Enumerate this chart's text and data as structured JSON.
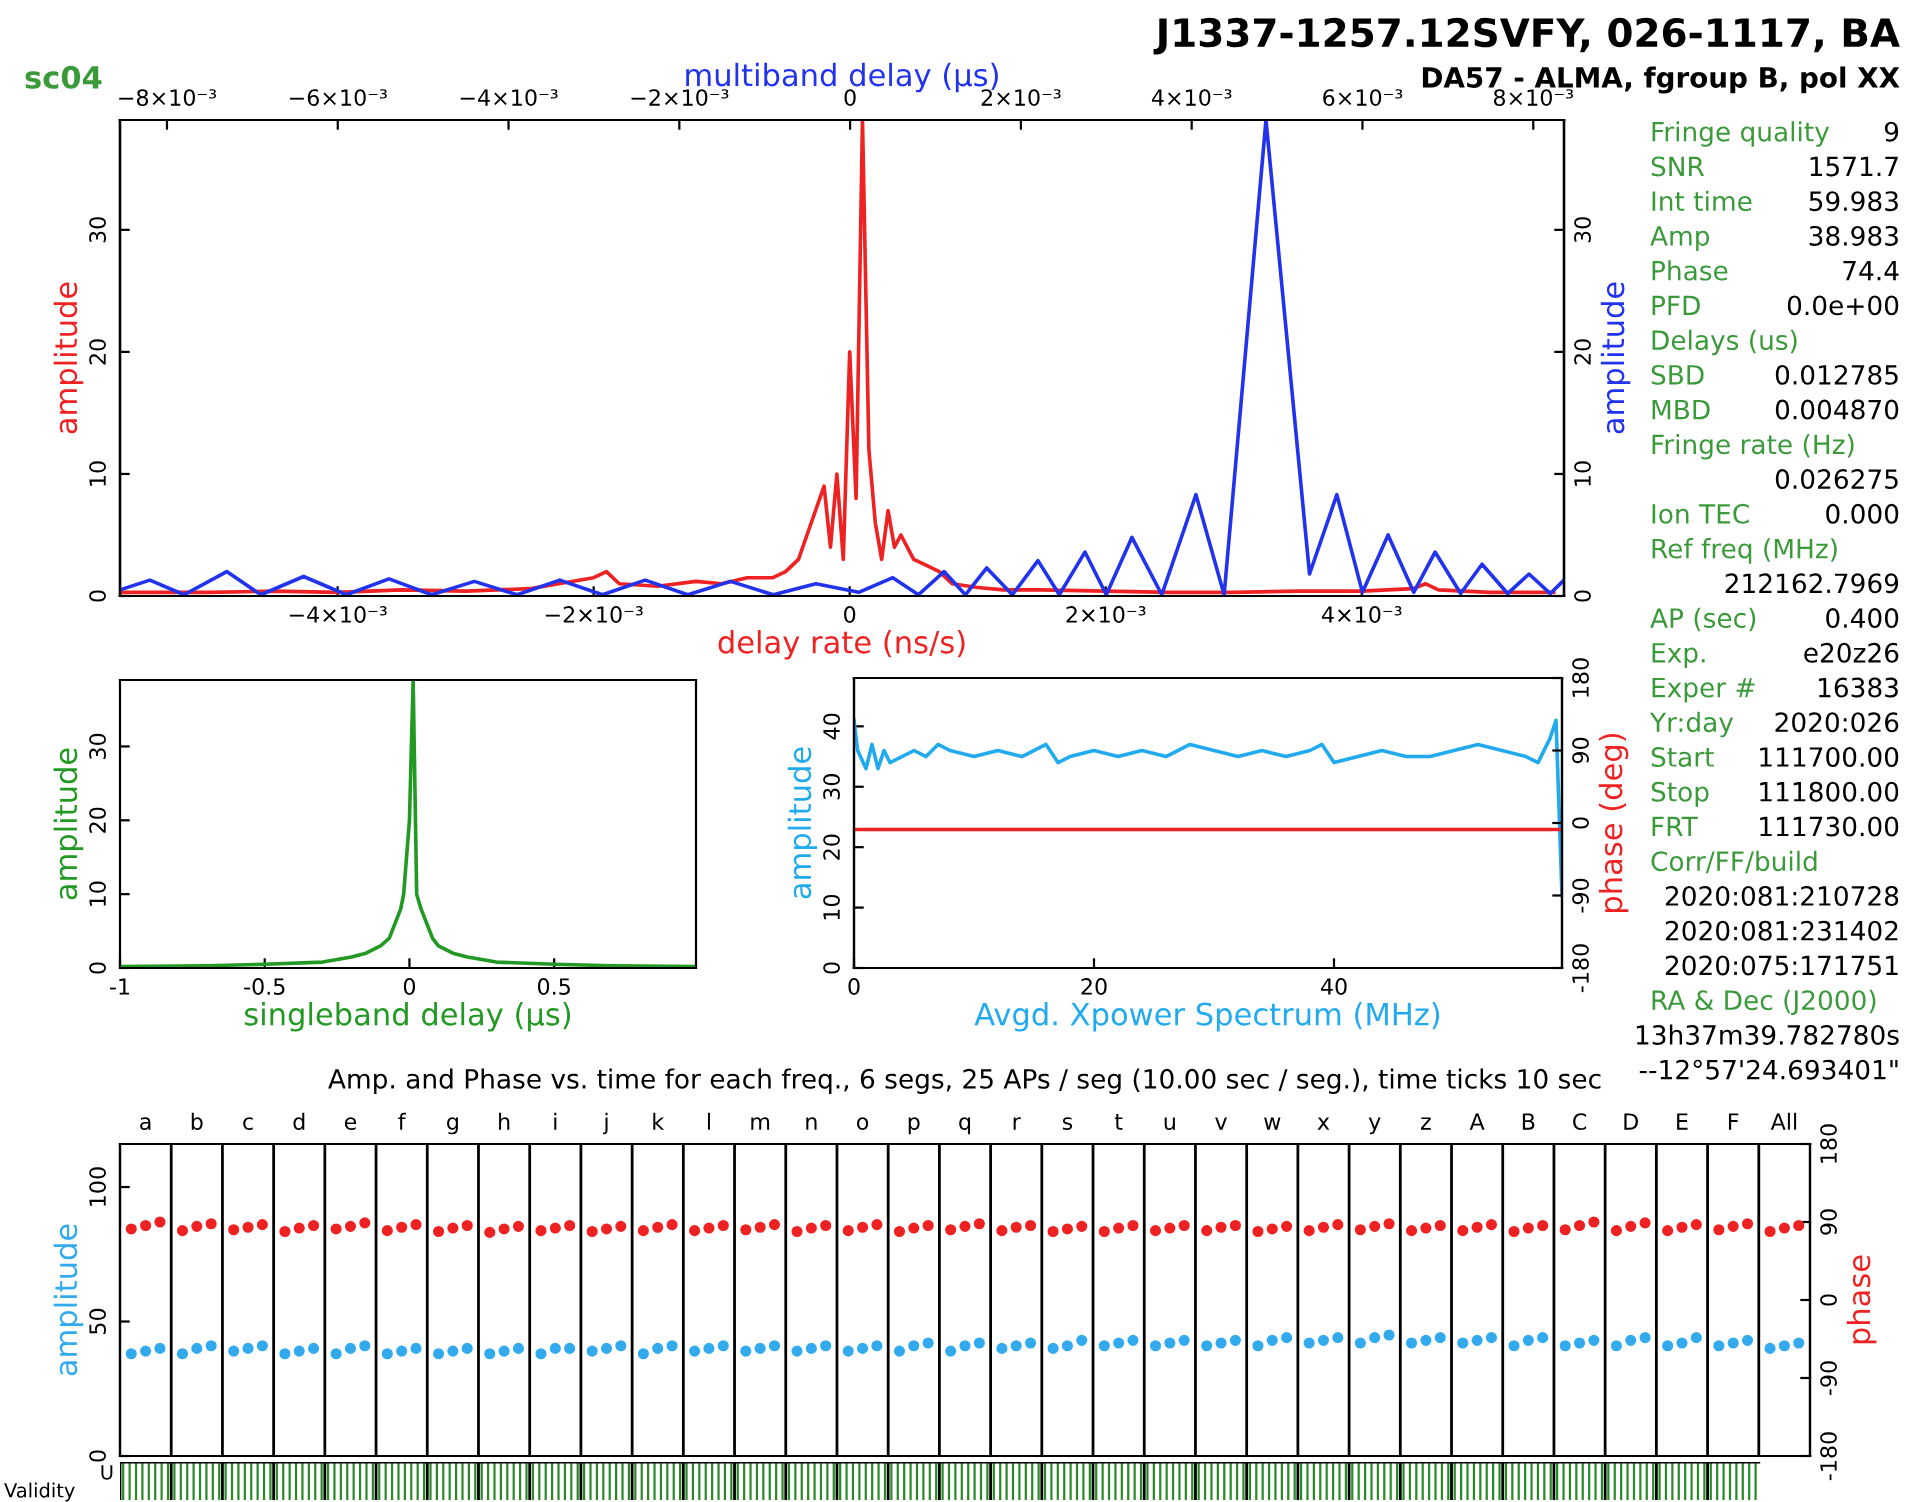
{
  "chart_data": [
    {
      "type": "line",
      "xlabel": "delay rate (ns/s)",
      "ylabel": "amplitude",
      "xlim": [
        -0.0057,
        0.00558
      ],
      "xticks": [
        {
          "value": -0.004,
          "label": "−4×10⁻³"
        },
        {
          "value": -0.002,
          "label": "−2×10⁻³"
        },
        {
          "value": 0,
          "label": "0"
        },
        {
          "value": 0.002,
          "label": "2×10⁻³"
        },
        {
          "value": 0.004,
          "label": "4×10⁻³"
        }
      ],
      "ylim": [
        0,
        39
      ],
      "yticks": [
        0,
        10,
        20,
        30
      ],
      "annotations": [
        "sc04"
      ],
      "x2label": "multiband delay (μs)",
      "y2label": "amplitude",
      "x2lim": [
        -0.00855,
        0.00836
      ],
      "x2ticks": [
        {
          "value": -0.008,
          "label": "−8×10⁻³"
        },
        {
          "value": -0.006,
          "label": "−6×10⁻³"
        },
        {
          "value": -0.004,
          "label": "−4×10⁻³"
        },
        {
          "value": -0.002,
          "label": "−2×10⁻³"
        },
        {
          "value": 0,
          "label": "0"
        },
        {
          "value": 0.002,
          "label": "2×10⁻³"
        },
        {
          "value": 0.004,
          "label": "4×10⁻³"
        },
        {
          "value": 0.006,
          "label": "6×10⁻³"
        },
        {
          "value": 0.008,
          "label": "8×10⁻³"
        }
      ],
      "y2lim": [
        0,
        39
      ],
      "y2ticks": [
        0,
        10,
        20,
        30
      ],
      "series": [
        {
          "color": "#ee2222",
          "x": [
            -0.0057,
            -0.005,
            -0.0045,
            -0.004,
            -0.0035,
            -0.003,
            -0.0025,
            -0.002,
            -0.0019,
            -0.0018,
            -0.0015,
            -0.0012,
            -0.001,
            -0.0008,
            -0.0006,
            -0.0005,
            -0.0004,
            -0.0003,
            -0.0002,
            -0.00015,
            -0.0001,
            -5e-05,
            0,
            5e-05,
            0.0001,
            0.00015,
            0.0002,
            0.00025,
            0.0003,
            0.00035,
            0.0004,
            0.0005,
            0.0006,
            0.0007,
            0.0008,
            0.001,
            0.0012,
            0.0015,
            0.002,
            0.0025,
            0.003,
            0.0035,
            0.004,
            0.0044,
            0.0045,
            0.0046,
            0.005,
            0.0055
          ],
          "values": [
            0.3,
            0.3,
            0.4,
            0.3,
            0.5,
            0.4,
            0.6,
            1.5,
            2,
            1,
            0.8,
            1.2,
            1,
            1.5,
            1.5,
            2,
            3,
            6,
            9,
            4,
            10,
            3,
            20,
            8,
            39,
            12,
            6,
            3,
            7,
            4,
            5,
            3,
            2.5,
            2,
            1,
            0.7,
            0.5,
            0.5,
            0.4,
            0.3,
            0.3,
            0.4,
            0.4,
            0.6,
            1,
            0.5,
            0.3,
            0.3
          ]
        },
        {
          "color": "#2233ee",
          "axis": "x2",
          "x": [
            -0.00855,
            -0.0082,
            -0.0078,
            -0.0073,
            -0.0069,
            -0.0064,
            -0.0059,
            -0.0054,
            -0.0049,
            -0.0044,
            -0.0039,
            -0.0034,
            -0.0029,
            -0.0024,
            -0.0019,
            -0.0014,
            -0.0009,
            -0.0004,
            0.0001,
            0.0005,
            0.0008,
            0.0011,
            0.00135,
            0.0016,
            0.0019,
            0.0022,
            0.00245,
            0.00275,
            0.003,
            0.0033,
            0.00365,
            0.00405,
            0.00438,
            0.00487,
            0.00538,
            0.0057,
            0.006,
            0.0063,
            0.0066,
            0.00685,
            0.00715,
            0.0074,
            0.0077,
            0.00795,
            0.0082,
            0.00836
          ],
          "values": [
            0.5,
            1.3,
            0.1,
            2.0,
            0.1,
            1.6,
            0.1,
            1.4,
            0.1,
            1.2,
            0.1,
            1.3,
            0.1,
            1.3,
            0.1,
            1.2,
            0.1,
            1.0,
            0.3,
            1.5,
            0.1,
            2.0,
            0.1,
            2.3,
            0.1,
            2.9,
            0.1,
            3.6,
            0.1,
            4.8,
            0.1,
            8.3,
            0.1,
            39,
            1.8,
            8.3,
            0.3,
            5.0,
            0.3,
            3.6,
            0.2,
            2.6,
            0.2,
            1.8,
            0.2,
            1.3
          ]
        }
      ]
    },
    {
      "type": "line",
      "xlabel": "singleband delay (μs)",
      "ylabel": "amplitude",
      "xlim": [
        -1,
        0.99
      ],
      "xticks": [
        -1,
        -0.5,
        0,
        0.5
      ],
      "ylim": [
        0,
        39
      ],
      "yticks": [
        0,
        10,
        20,
        30
      ],
      "series": [
        {
          "color": "#229922",
          "x": [
            -1,
            -0.7,
            -0.5,
            -0.3,
            -0.2,
            -0.15,
            -0.1,
            -0.07,
            -0.05,
            -0.03,
            -0.02,
            0,
            0.0128,
            0.025,
            0.04,
            0.06,
            0.08,
            0.1,
            0.15,
            0.2,
            0.3,
            0.5,
            0.7,
            0.99
          ],
          "values": [
            0.2,
            0.3,
            0.5,
            0.8,
            1.5,
            2,
            3,
            4,
            6,
            8,
            10,
            20,
            39,
            10,
            8,
            6,
            4,
            3,
            2,
            1.5,
            0.8,
            0.5,
            0.3,
            0.2
          ]
        }
      ]
    },
    {
      "type": "line",
      "xlabel": "Avgd. Xpower Spectrum (MHz)",
      "ylabel": "amplitude",
      "y2label": "phase (deg)",
      "xlim": [
        0,
        59
      ],
      "xticks": [
        0,
        20,
        40
      ],
      "ylim": [
        0,
        48
      ],
      "yticks": [
        0,
        10,
        20,
        30,
        40
      ],
      "y2lim": [
        -180,
        180
      ],
      "y2ticks": [
        -180,
        -90,
        0,
        90,
        180
      ],
      "series": [
        {
          "color": "#22aaee",
          "x": [
            0,
            0.3,
            1,
            1.5,
            2,
            2.5,
            3,
            4,
            5,
            6,
            7,
            8,
            10,
            12,
            14,
            16,
            17,
            18,
            20,
            22,
            24,
            26,
            28,
            30,
            32,
            34,
            36,
            38,
            39,
            40,
            42,
            44,
            46,
            48,
            50,
            52,
            54,
            56,
            57,
            58,
            58.5,
            59
          ],
          "values": [
            41,
            36,
            33,
            37,
            33,
            36,
            34,
            35,
            36,
            35,
            37,
            36,
            35,
            36,
            35,
            37,
            34,
            35,
            36,
            35,
            36,
            35,
            37,
            36,
            35,
            36,
            35,
            36,
            37,
            34,
            35,
            36,
            35,
            35,
            36,
            37,
            36,
            35,
            34,
            38,
            41,
            12
          ]
        },
        {
          "color": "#ee2222",
          "axis": "y2",
          "x": [
            0,
            10,
            20,
            30,
            40,
            50,
            59
          ],
          "values": [
            -8,
            -8,
            -8,
            -8,
            -8,
            -8,
            -8
          ]
        }
      ]
    },
    {
      "type": "scatter",
      "title": "Amp. and Phase vs. time for each freq., 6 segs, 25 APs / seg (10.00 sec / seg.), time ticks 10 sec",
      "ylabel": "amplitude",
      "y2label": "phase",
      "marker": "circle",
      "grid": "x",
      "annotations": [
        "Validity",
        "U"
      ],
      "categories": [
        "a",
        "b",
        "c",
        "d",
        "e",
        "f",
        "g",
        "h",
        "i",
        "j",
        "k",
        "l",
        "m",
        "n",
        "o",
        "p",
        "q",
        "r",
        "s",
        "t",
        "u",
        "v",
        "w",
        "x",
        "y",
        "z",
        "A",
        "B",
        "C",
        "D",
        "E",
        "F",
        "All"
      ],
      "ylim": [
        0,
        116
      ],
      "yticks": [
        0,
        50,
        100
      ],
      "y2lim": [
        -180,
        180
      ],
      "y2ticks": [
        -180,
        -90,
        0,
        90,
        180
      ],
      "series": [
        {
          "color": "#33aaee",
          "values": [
            38,
            38,
            39,
            38,
            38,
            38,
            38,
            38,
            38,
            39,
            38,
            39,
            39,
            39,
            39,
            39,
            39,
            40,
            40,
            41,
            41,
            41,
            41,
            42,
            42,
            42,
            42,
            41,
            41,
            41,
            41,
            41,
            40
          ]
        },
        {
          "color": "#33aaee",
          "values": [
            39,
            40,
            40,
            39,
            40,
            39,
            39,
            39,
            40,
            40,
            40,
            40,
            40,
            40,
            40,
            41,
            41,
            41,
            41,
            42,
            42,
            42,
            43,
            43,
            44,
            43,
            43,
            43,
            42,
            43,
            42,
            42,
            41
          ]
        },
        {
          "color": "#33aaee",
          "values": [
            40,
            41,
            41,
            40,
            41,
            40,
            40,
            40,
            40,
            41,
            41,
            41,
            41,
            41,
            41,
            42,
            42,
            42,
            43,
            43,
            43,
            43,
            44,
            44,
            45,
            44,
            44,
            44,
            43,
            44,
            44,
            43,
            42
          ]
        },
        {
          "color": "#ee2222",
          "axis": "y2",
          "values": [
            82,
            80,
            81,
            79,
            82,
            80,
            79,
            78,
            80,
            79,
            80,
            80,
            81,
            79,
            80,
            79,
            81,
            80,
            79,
            79,
            80,
            80,
            79,
            80,
            81,
            80,
            80,
            79,
            81,
            80,
            80,
            81,
            79
          ]
        },
        {
          "color": "#ee2222",
          "axis": "y2",
          "values": [
            86,
            85,
            84,
            83,
            85,
            84,
            83,
            82,
            83,
            82,
            84,
            83,
            84,
            83,
            84,
            83,
            85,
            84,
            82,
            83,
            83,
            84,
            82,
            84,
            85,
            83,
            84,
            83,
            86,
            85,
            84,
            85,
            83
          ]
        },
        {
          "color": "#ee2222",
          "axis": "y2",
          "values": [
            90,
            88,
            87,
            86,
            89,
            87,
            86,
            85,
            86,
            85,
            87,
            86,
            87,
            86,
            87,
            86,
            88,
            86,
            85,
            86,
            86,
            86,
            85,
            87,
            88,
            86,
            87,
            86,
            90,
            89,
            87,
            88,
            86
          ]
        }
      ]
    },
    {
      "type": "other",
      "title": "J1337-1257.12SVFY, 026-1117, BA",
      "subtitle": "DA57 - ALMA, fgroup B, pol XX",
      "categories": [
        "Fringe quality",
        "SNR",
        "Int time",
        "Amp",
        "Phase",
        "PFD",
        "Delays (us)",
        "SBD",
        "MBD",
        "Fringe rate (Hz)",
        null,
        "Ion TEC",
        "Ref freq (MHz)",
        null,
        "AP (sec)",
        "Exp.",
        "Exper #",
        "Yr:day",
        "Start",
        "Stop",
        "FRT",
        "Corr/FF/build",
        null,
        null,
        null,
        "RA & Dec (J2000)",
        null,
        null
      ],
      "value_labels": [
        "9",
        "1571.7",
        "59.983",
        "38.983",
        "74.4",
        "0.0e+00",
        null,
        "0.012785",
        "0.004870",
        null,
        "0.026275",
        "0.000",
        null,
        "212162.7969",
        "0.400",
        "e20z26",
        "16383",
        "2020:026",
        "111700.00",
        "111800.00",
        "111730.00",
        null,
        "2020:081:210728",
        "2020:081:231402",
        "2020:075:171751",
        null,
        "13h37m39.782780s",
        "--12°57'24.693401\""
      ]
    }
  ]
}
